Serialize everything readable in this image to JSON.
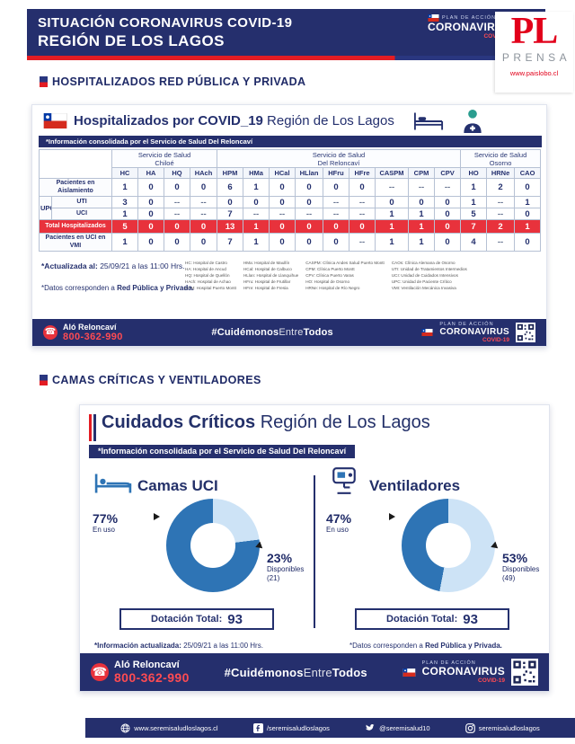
{
  "header": {
    "line1": "SITUACIÓN CORONAVIRUS COVID-19",
    "line2": "REGIÓN DE LOS LAGOS"
  },
  "brand": {
    "plan": "PLAN DE ACCIÓN",
    "name": "CORONAVIRUS",
    "sub": "COVID-19"
  },
  "watermark": {
    "initials": "PL",
    "name": "PRENSA",
    "url": "www.paislobo.cl"
  },
  "sections": {
    "s1": "HOSPITALIZADOS  RED PÚBLICA Y PRIVADA",
    "s2": "CAMAS  CRÍTICAS  Y  VENTILADORES"
  },
  "card1": {
    "title_bold": "Hospitalizados por COVID_19",
    "title_rest": " Región de Los Lagos",
    "strip": "*Información consolidada por el Servicio de Salud Del Reloncaví",
    "table": {
      "groups": [
        {
          "label": "Servicio de Salud Chiloé",
          "codes": [
            "HC",
            "HA",
            "HQ",
            "HAch"
          ]
        },
        {
          "label": "Servicio de Salud Del Reloncaví",
          "codes": [
            "HPM",
            "HMa",
            "HCal",
            "HLlan",
            "HFru",
            "HFre",
            "CASPM",
            "CPM",
            "CPV"
          ]
        },
        {
          "label": "Servicio de Salud Osorno",
          "codes": [
            "HO",
            "HRNe",
            "CAO"
          ]
        }
      ],
      "rows": [
        {
          "label": "Pacientes en Aislamiento",
          "values": [
            "1",
            "0",
            "0",
            "0",
            "6",
            "1",
            "0",
            "0",
            "0",
            "0",
            "--",
            "--",
            "--",
            "1",
            "2",
            "0"
          ]
        },
        {
          "label": "UTI",
          "group": "UPC",
          "values": [
            "3",
            "0",
            "--",
            "--",
            "0",
            "0",
            "0",
            "0",
            "--",
            "--",
            "0",
            "0",
            "0",
            "1",
            "--",
            "1"
          ]
        },
        {
          "label": "UCI",
          "sub": true,
          "values": [
            "1",
            "0",
            "--",
            "--",
            "7",
            "--",
            "--",
            "--",
            "--",
            "--",
            "1",
            "1",
            "0",
            "5",
            "--",
            "0"
          ]
        },
        {
          "label": "Total Hospitalizados",
          "total": true,
          "values": [
            "5",
            "0",
            "0",
            "0",
            "13",
            "1",
            "0",
            "0",
            "0",
            "0",
            "1",
            "1",
            "0",
            "7",
            "2",
            "1"
          ]
        },
        {
          "label": "Pacientes en UCI en VMI",
          "values": [
            "1",
            "0",
            "0",
            "0",
            "7",
            "1",
            "0",
            "0",
            "0",
            "--",
            "1",
            "1",
            "0",
            "4",
            "--",
            "0"
          ]
        }
      ]
    },
    "legend": [
      [
        "HC: Hospital de Castro",
        "HA: Hospital de Ancud",
        "HQ: Hospital de Quellón",
        "HAch: Hospital de Achao",
        "HPM: Hospital Puerto Montt"
      ],
      [
        "HMa: Hospital de Maullín",
        "HCal: Hospital de Calbuco",
        "HLlan: Hospital de Llanquihue",
        "HFru: Hospital de Frutillar",
        "HFre: Hospital de Fresia"
      ],
      [
        "CASPM: Clínica Andes Salud Puerto Montt",
        "CPM: Clínica Puerto Montt",
        "CPV: Clínica Puerto Varas",
        "HO: Hospital de Osorno",
        "HRNe: Hospital de Río Negro"
      ],
      [
        "CAOs: Clínica Alemana de Osorno",
        "UTI: Unidad de Tratamientos Intermedios",
        "UCI: Unidad de Cuidados Intensivos",
        "UPC: Unidad de Paciente Crítico",
        "VMI: Ventilación Mecánica Invasiva"
      ]
    ],
    "note_updated_bold": "*Actualizada al:",
    "note_updated_rest": " 25/09/21 a las 11:00 Hrs.",
    "note_data_prefix": "*Datos corresponden a ",
    "note_data_bold": "Red Pública y Privada."
  },
  "footer_bar": {
    "phone_label": "Aló Reloncaví",
    "phone_number": "800-362-990",
    "hashtag_1": "#Cuidémonos",
    "hashtag_2": "Entre",
    "hashtag_3": "Todos"
  },
  "card2": {
    "title_bold": "Cuidados Críticos",
    "title_rest": " Región de Los Lagos",
    "strip": "*Información consolidada por el Servicio de Salud Del Reloncaví",
    "colors": {
      "in_use": "#2e74b5",
      "available": "#cde3f6"
    },
    "panels": [
      {
        "title": "Camas UCI",
        "in_use_pct": "77%",
        "in_use_label": "En uso",
        "available_pct": "23%",
        "available_label": "Disponibles",
        "available_count": "(21)",
        "available_num": 23,
        "total_label": "Dotación Total:",
        "total": "93"
      },
      {
        "title": "Ventiladores",
        "in_use_pct": "47%",
        "in_use_label": "En uso",
        "available_pct": "53%",
        "available_label": "Disponibles",
        "available_count": "(49)",
        "available_num": 53,
        "total_label": "Dotación Total:",
        "total": "93"
      }
    ],
    "note_updated_bold": "*Información actualizada:",
    "note_updated_rest": " 25/09/21 a las 11:00 Hrs.",
    "note_data_prefix": "*Datos corresponden a ",
    "note_data_bold": "Red Pública y Privada."
  },
  "chart_data": [
    {
      "type": "pie",
      "title": "Camas UCI",
      "labels": [
        "En uso",
        "Disponibles"
      ],
      "values": [
        77,
        23
      ],
      "unit": "percent",
      "available_count": 21,
      "dotacion_total": 93,
      "colors": [
        "#2e74b5",
        "#cde3f6"
      ]
    },
    {
      "type": "pie",
      "title": "Ventiladores",
      "labels": [
        "En uso",
        "Disponibles"
      ],
      "values": [
        47,
        53
      ],
      "unit": "percent",
      "available_count": 49,
      "dotacion_total": 93,
      "colors": [
        "#2e74b5",
        "#cde3f6"
      ]
    }
  ],
  "social": {
    "items": [
      {
        "icon": "globe-icon",
        "text": "www.seremisaludloslagos.cl"
      },
      {
        "icon": "facebook-icon",
        "text": "/seremisaludloslagos"
      },
      {
        "icon": "twitter-icon",
        "text": "@seremisalud10"
      },
      {
        "icon": "instagram-icon",
        "text": "seremisaludloslagos"
      }
    ]
  }
}
